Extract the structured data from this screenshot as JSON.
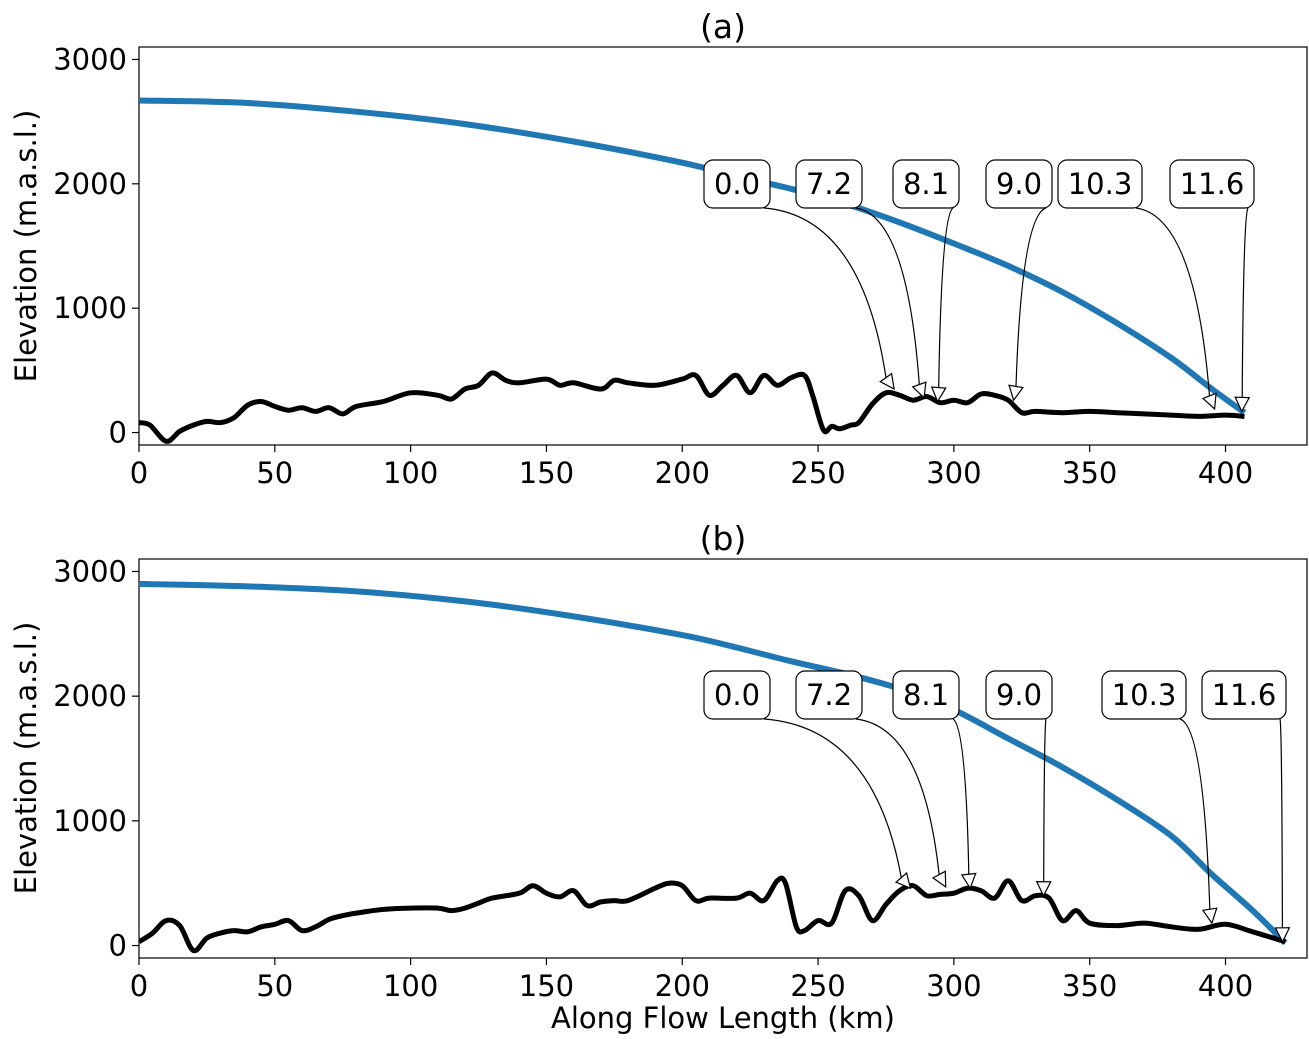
{
  "chart_data": [
    {
      "type": "line",
      "title": "(a)",
      "xlabel": "",
      "ylabel": "Elevation (m.a.s.l.)",
      "xlim": [
        0,
        430
      ],
      "ylim": [
        -100,
        3100
      ],
      "xticks": [
        "0",
        "50",
        "100",
        "150",
        "200",
        "250",
        "300",
        "350",
        "400"
      ],
      "yticks": [
        "0",
        "1000",
        "2000",
        "3000"
      ],
      "grid": false,
      "series": [
        {
          "color": "#1f77b4",
          "style": "ice-surface",
          "x": [
            0,
            40,
            80,
            120,
            160,
            200,
            220,
            240,
            260,
            280,
            300,
            320,
            340,
            360,
            380,
            395,
            407
          ],
          "y": [
            2670,
            2650,
            2580,
            2480,
            2340,
            2170,
            2060,
            1960,
            1840,
            1690,
            1520,
            1340,
            1130,
            880,
            600,
            350,
            160
          ]
        },
        {
          "color": "#000000",
          "style": "bed",
          "x": [
            0,
            4,
            10,
            15,
            20,
            25,
            30,
            35,
            40,
            45,
            50,
            55,
            60,
            65,
            70,
            75,
            80,
            90,
            100,
            110,
            115,
            120,
            125,
            130,
            135,
            140,
            150,
            155,
            160,
            170,
            175,
            180,
            190,
            200,
            205,
            210,
            215,
            220,
            225,
            230,
            235,
            240,
            245,
            248,
            252,
            255,
            258,
            262,
            265,
            270,
            275,
            280,
            285,
            290,
            295,
            300,
            305,
            310,
            315,
            320,
            325,
            330,
            340,
            350,
            360,
            370,
            380,
            390,
            400,
            407
          ],
          "y": [
            80,
            60,
            -70,
            10,
            60,
            90,
            80,
            120,
            220,
            250,
            210,
            180,
            200,
            170,
            200,
            150,
            210,
            250,
            320,
            300,
            270,
            350,
            380,
            480,
            420,
            400,
            430,
            380,
            400,
            350,
            420,
            400,
            380,
            430,
            460,
            300,
            380,
            460,
            320,
            460,
            380,
            440,
            460,
            300,
            20,
            50,
            30,
            60,
            80,
            230,
            320,
            300,
            260,
            290,
            240,
            260,
            240,
            310,
            300,
            260,
            160,
            170,
            160,
            170,
            160,
            150,
            140,
            130,
            140,
            130
          ]
        }
      ],
      "annotations": [
        {
          "label": "0.0",
          "target_x": 278,
          "target_y": 350
        },
        {
          "label": "7.2",
          "target_x": 289,
          "target_y": 280
        },
        {
          "label": "8.1",
          "target_x": 294,
          "target_y": 250
        },
        {
          "label": "9.0",
          "target_x": 322,
          "target_y": 260
        },
        {
          "label": "10.3",
          "target_x": 396,
          "target_y": 190
        },
        {
          "label": "11.6",
          "target_x": 406,
          "target_y": 170
        }
      ]
    },
    {
      "type": "line",
      "title": "(b)",
      "xlabel": "Along Flow Length (km)",
      "ylabel": "Elevation (m.a.s.l.)",
      "xlim": [
        0,
        430
      ],
      "ylim": [
        -100,
        3100
      ],
      "xticks": [
        "0",
        "50",
        "100",
        "150",
        "200",
        "250",
        "300",
        "350",
        "400"
      ],
      "yticks": [
        "0",
        "1000",
        "2000",
        "3000"
      ],
      "grid": false,
      "series": [
        {
          "color": "#1f77b4",
          "style": "ice-surface",
          "x": [
            0,
            40,
            80,
            120,
            160,
            200,
            220,
            240,
            260,
            280,
            300,
            320,
            340,
            360,
            380,
            395,
            410,
            422
          ],
          "y": [
            2900,
            2880,
            2840,
            2760,
            2640,
            2490,
            2390,
            2280,
            2180,
            2060,
            1890,
            1660,
            1430,
            1170,
            880,
            570,
            280,
            20
          ]
        },
        {
          "color": "#000000",
          "style": "bed",
          "x": [
            0,
            5,
            10,
            15,
            20,
            25,
            30,
            35,
            40,
            45,
            50,
            55,
            60,
            65,
            70,
            75,
            80,
            90,
            100,
            110,
            115,
            120,
            125,
            130,
            140,
            145,
            150,
            155,
            160,
            165,
            170,
            175,
            180,
            190,
            195,
            200,
            205,
            210,
            220,
            225,
            230,
            235,
            238,
            242,
            245,
            250,
            255,
            260,
            265,
            270,
            275,
            280,
            285,
            290,
            295,
            300,
            305,
            310,
            315,
            320,
            325,
            330,
            335,
            340,
            345,
            350,
            360,
            370,
            380,
            390,
            400,
            410,
            422
          ],
          "y": [
            30,
            100,
            200,
            160,
            -40,
            60,
            100,
            120,
            110,
            150,
            170,
            200,
            120,
            150,
            210,
            240,
            260,
            290,
            300,
            300,
            280,
            300,
            340,
            380,
            420,
            480,
            420,
            390,
            440,
            320,
            350,
            360,
            360,
            460,
            500,
            480,
            360,
            380,
            380,
            420,
            360,
            520,
            500,
            150,
            120,
            200,
            180,
            440,
            400,
            200,
            330,
            440,
            480,
            400,
            410,
            420,
            460,
            440,
            380,
            520,
            360,
            400,
            380,
            200,
            280,
            180,
            160,
            180,
            150,
            130,
            170,
            110,
            30
          ]
        }
      ],
      "annotations": [
        {
          "label": "0.0",
          "target_x": 284,
          "target_y": 460
        },
        {
          "label": "7.2",
          "target_x": 297,
          "target_y": 470
        },
        {
          "label": "8.1",
          "target_x": 306,
          "target_y": 460
        },
        {
          "label": "9.0",
          "target_x": 333,
          "target_y": 400
        },
        {
          "label": "10.3",
          "target_x": 395,
          "target_y": 180
        },
        {
          "label": "11.6",
          "target_x": 421,
          "target_y": 30
        }
      ]
    }
  ]
}
